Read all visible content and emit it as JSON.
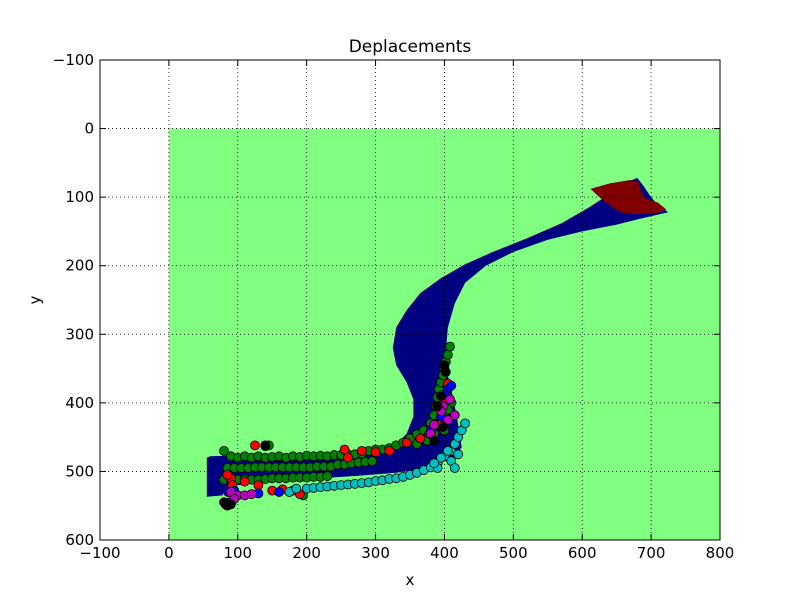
{
  "chart_data": {
    "type": "scatter",
    "title": "Deplacements",
    "xlabel": "x",
    "ylabel": "y",
    "xlim": [
      -100,
      800
    ],
    "ylim": [
      600,
      -100
    ],
    "y_inverted": true,
    "grid": true,
    "grid_style": "dotted",
    "x_ticks": [
      "−100",
      "0",
      "100",
      "200",
      "300",
      "400",
      "500",
      "600",
      "700",
      "800"
    ],
    "y_ticks": [
      "−100",
      "0",
      "100",
      "200",
      "300",
      "400",
      "500",
      "600"
    ],
    "colors": {
      "field": "#80ff80",
      "band": "#000080",
      "tip": "#800000",
      "markers": [
        "#008000",
        "#ff0000",
        "#0000ff",
        "#00bfbf",
        "#bf00bf",
        "#000000"
      ]
    },
    "field_region": {
      "x": [
        0,
        800
      ],
      "y": [
        0,
        600
      ]
    },
    "band_outline": [
      [
        55,
        480
      ],
      [
        60,
        478
      ],
      [
        120,
        476
      ],
      [
        200,
        474
      ],
      [
        260,
        472
      ],
      [
        300,
        468
      ],
      [
        330,
        460
      ],
      [
        345,
        445
      ],
      [
        355,
        420
      ],
      [
        355,
        395
      ],
      [
        345,
        370
      ],
      [
        330,
        345
      ],
      [
        325,
        320
      ],
      [
        330,
        290
      ],
      [
        345,
        265
      ],
      [
        365,
        240
      ],
      [
        395,
        218
      ],
      [
        430,
        198
      ],
      [
        470,
        180
      ],
      [
        520,
        160
      ],
      [
        570,
        138
      ],
      [
        610,
        115
      ],
      [
        640,
        95
      ],
      [
        665,
        78
      ],
      [
        680,
        72
      ],
      [
        690,
        85
      ],
      [
        700,
        100
      ],
      [
        710,
        112
      ],
      [
        725,
        122
      ],
      [
        690,
        130
      ],
      [
        650,
        140
      ],
      [
        600,
        150
      ],
      [
        550,
        162
      ],
      [
        500,
        180
      ],
      [
        460,
        200
      ],
      [
        430,
        225
      ],
      [
        415,
        255
      ],
      [
        405,
        290
      ],
      [
        402,
        325
      ],
      [
        405,
        360
      ],
      [
        412,
        390
      ],
      [
        418,
        420
      ],
      [
        422,
        445
      ],
      [
        425,
        465
      ],
      [
        415,
        478
      ],
      [
        395,
        488
      ],
      [
        370,
        496
      ],
      [
        330,
        502
      ],
      [
        280,
        506
      ],
      [
        220,
        510
      ],
      [
        150,
        515
      ],
      [
        100,
        520
      ],
      [
        80,
        528
      ],
      [
        78,
        535
      ],
      [
        55,
        537
      ]
    ],
    "tip_outline": [
      [
        612,
        88
      ],
      [
        640,
        80
      ],
      [
        670,
        75
      ],
      [
        682,
        78
      ],
      [
        685,
        92
      ],
      [
        692,
        102
      ],
      [
        710,
        108
      ],
      [
        722,
        118
      ],
      [
        710,
        123
      ],
      [
        680,
        125
      ],
      [
        655,
        122
      ],
      [
        640,
        112
      ],
      [
        625,
        100
      ]
    ],
    "series": [
      {
        "color": "#008000",
        "points": [
          [
            80,
            470
          ],
          [
            90,
            478
          ],
          [
            100,
            480
          ],
          [
            110,
            478
          ],
          [
            120,
            480
          ],
          [
            130,
            478
          ],
          [
            140,
            480
          ],
          [
            150,
            479
          ],
          [
            160,
            478
          ],
          [
            170,
            480
          ],
          [
            180,
            478
          ],
          [
            190,
            479
          ],
          [
            200,
            477
          ],
          [
            210,
            478
          ],
          [
            220,
            477
          ],
          [
            230,
            478
          ],
          [
            240,
            476
          ],
          [
            250,
            476
          ],
          [
            260,
            475
          ],
          [
            270,
            475
          ],
          [
            280,
            474
          ],
          [
            290,
            470
          ],
          [
            300,
            468
          ],
          [
            310,
            468
          ],
          [
            320,
            466
          ],
          [
            330,
            462
          ],
          [
            340,
            458
          ],
          [
            350,
            452
          ],
          [
            360,
            446
          ],
          [
            370,
            440
          ],
          [
            380,
            430
          ],
          [
            385,
            418
          ],
          [
            388,
            405
          ],
          [
            390,
            392
          ],
          [
            392,
            380
          ],
          [
            395,
            370
          ],
          [
            398,
            360
          ],
          [
            400,
            350
          ],
          [
            402,
            340
          ],
          [
            405,
            330
          ],
          [
            408,
            318
          ],
          [
            85,
            495
          ],
          [
            95,
            495
          ],
          [
            105,
            495
          ],
          [
            115,
            495
          ],
          [
            125,
            494
          ],
          [
            135,
            494
          ],
          [
            145,
            494
          ],
          [
            155,
            494
          ],
          [
            165,
            494
          ],
          [
            175,
            494
          ],
          [
            185,
            494
          ],
          [
            195,
            494
          ],
          [
            205,
            494
          ],
          [
            215,
            493
          ],
          [
            225,
            493
          ],
          [
            235,
            493
          ],
          [
            245,
            490
          ],
          [
            255,
            490
          ],
          [
            265,
            488
          ],
          [
            275,
            487
          ],
          [
            285,
            486
          ],
          [
            295,
            485
          ],
          [
            80,
            512
          ],
          [
            90,
            513
          ],
          [
            100,
            512
          ],
          [
            110,
            512
          ],
          [
            120,
            512
          ],
          [
            130,
            512
          ],
          [
            140,
            511
          ],
          [
            150,
            510
          ],
          [
            160,
            510
          ],
          [
            170,
            510
          ],
          [
            180,
            509
          ],
          [
            190,
            509
          ],
          [
            200,
            509
          ],
          [
            210,
            508
          ],
          [
            220,
            508
          ],
          [
            230,
            507
          ],
          [
            195,
            535
          ],
          [
            145,
            462
          ],
          [
            410,
            400
          ],
          [
            400,
            420
          ],
          [
            405,
            410
          ],
          [
            395,
            425
          ],
          [
            400,
            440
          ],
          [
            385,
            445
          ],
          [
            375,
            455
          ],
          [
            360,
            460
          ]
        ]
      },
      {
        "color": "#ff0000",
        "points": [
          [
            125,
            462
          ],
          [
            140,
            463
          ],
          [
            90,
            510
          ],
          [
            110,
            515
          ],
          [
            130,
            520
          ],
          [
            150,
            528
          ],
          [
            165,
            526
          ],
          [
            180,
            528
          ],
          [
            190,
            533
          ],
          [
            255,
            468
          ],
          [
            300,
            472
          ],
          [
            320,
            470
          ],
          [
            345,
            458
          ],
          [
            365,
            452
          ],
          [
            378,
            445
          ],
          [
            392,
            432
          ],
          [
            400,
            398
          ],
          [
            405,
            372
          ],
          [
            92,
            520
          ],
          [
            85,
            505
          ],
          [
            260,
            480
          ],
          [
            280,
            470
          ]
        ]
      },
      {
        "color": "#0000ff",
        "points": [
          [
            86,
            530
          ],
          [
            95,
            528
          ],
          [
            130,
            532
          ],
          [
            160,
            530
          ],
          [
            380,
            440
          ],
          [
            395,
            420
          ],
          [
            405,
            380
          ],
          [
            410,
            375
          ],
          [
            400,
            388
          ],
          [
            82,
            548
          ],
          [
            88,
            545
          ]
        ]
      },
      {
        "color": "#00bfbf",
        "points": [
          [
            200,
            525
          ],
          [
            210,
            524
          ],
          [
            220,
            523
          ],
          [
            230,
            522
          ],
          [
            240,
            521
          ],
          [
            250,
            520
          ],
          [
            260,
            519
          ],
          [
            270,
            518
          ],
          [
            280,
            517
          ],
          [
            290,
            516
          ],
          [
            300,
            514
          ],
          [
            310,
            513
          ],
          [
            320,
            511
          ],
          [
            330,
            510
          ],
          [
            340,
            508
          ],
          [
            350,
            505
          ],
          [
            360,
            502
          ],
          [
            370,
            498
          ],
          [
            380,
            494
          ],
          [
            390,
            488
          ],
          [
            400,
            478
          ],
          [
            410,
            470
          ],
          [
            415,
            460
          ],
          [
            420,
            450
          ],
          [
            425,
            440
          ],
          [
            430,
            430
          ],
          [
            390,
            495
          ],
          [
            410,
            485
          ],
          [
            415,
            495
          ],
          [
            420,
            475
          ],
          [
            405,
            470
          ],
          [
            395,
            480
          ],
          [
            385,
            488
          ],
          [
            175,
            530
          ],
          [
            185,
            525
          ]
        ]
      },
      {
        "color": "#bf00bf",
        "points": [
          [
            100,
            535
          ],
          [
            110,
            535
          ],
          [
            120,
            533
          ],
          [
            90,
            530
          ],
          [
            95,
            540
          ],
          [
            415,
            418
          ],
          [
            405,
            425
          ],
          [
            398,
            405
          ],
          [
            408,
            395
          ],
          [
            395,
            412
          ],
          [
            385,
            432
          ],
          [
            380,
            445
          ]
        ]
      },
      {
        "color": "#000000",
        "points": [
          [
            80,
            545
          ],
          [
            90,
            548
          ],
          [
            400,
            345
          ],
          [
            402,
            355
          ],
          [
            395,
            390
          ],
          [
            140,
            462
          ],
          [
            85,
            550
          ],
          [
            390,
            405
          ],
          [
            398,
            435
          ],
          [
            385,
            455
          ]
        ]
      }
    ]
  }
}
